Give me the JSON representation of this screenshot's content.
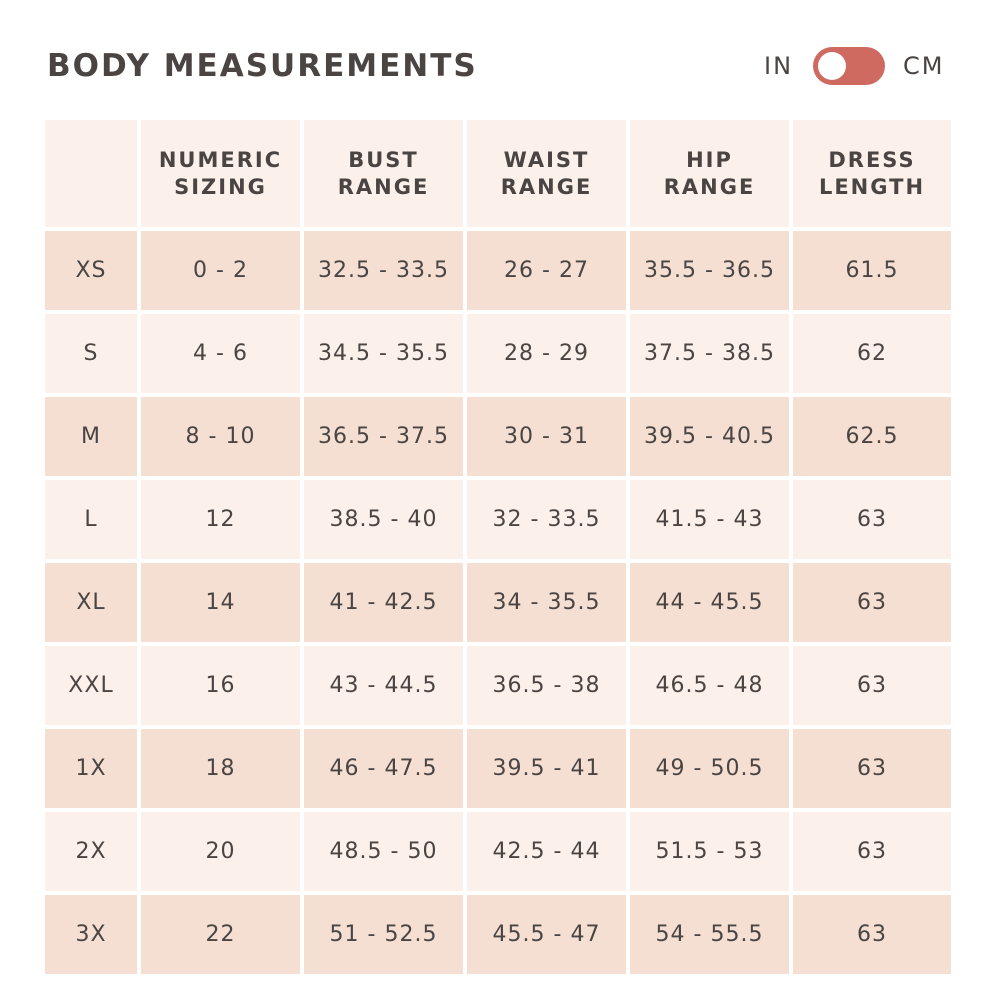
{
  "title": "BODY MEASUREMENTS",
  "unit_toggle": {
    "left_label": "IN",
    "right_label": "CM",
    "selected": "IN",
    "track_color": "#cf6a60"
  },
  "table": {
    "headers": [
      {
        "line1": "",
        "line2": ""
      },
      {
        "line1": "NUMERIC",
        "line2": "SIZING"
      },
      {
        "line1": "BUST",
        "line2": "RANGE"
      },
      {
        "line1": "WAIST",
        "line2": "RANGE"
      },
      {
        "line1": "HIP",
        "line2": "RANGE"
      },
      {
        "line1": "DRESS",
        "line2": "LENGTH"
      }
    ],
    "rows": [
      [
        "XS",
        "0 - 2",
        "32.5 - 33.5",
        "26 - 27",
        "35.5 - 36.5",
        "61.5"
      ],
      [
        "S",
        "4 - 6",
        "34.5 - 35.5",
        "28 - 29",
        "37.5 - 38.5",
        "62"
      ],
      [
        "M",
        "8 - 10",
        "36.5 - 37.5",
        "30 - 31",
        "39.5 - 40.5",
        "62.5"
      ],
      [
        "L",
        "12",
        "38.5 - 40",
        "32 - 33.5",
        "41.5 - 43",
        "63"
      ],
      [
        "XL",
        "14",
        "41 - 42.5",
        "34 - 35.5",
        "44 - 45.5",
        "63"
      ],
      [
        "XXL",
        "16",
        "43 - 44.5",
        "36.5 - 38",
        "46.5 - 48",
        "63"
      ],
      [
        "1X",
        "18",
        "46 - 47.5",
        "39.5 - 41",
        "49 - 50.5",
        "63"
      ],
      [
        "2X",
        "20",
        "48.5 - 50",
        "42.5 - 44",
        "51.5 - 53",
        "63"
      ],
      [
        "3X",
        "22",
        "51 - 52.5",
        "45.5 - 47",
        "54 - 55.5",
        "63"
      ]
    ],
    "row_colors": {
      "dark": "#f4dfd2",
      "light": "#fcf1ea"
    }
  }
}
